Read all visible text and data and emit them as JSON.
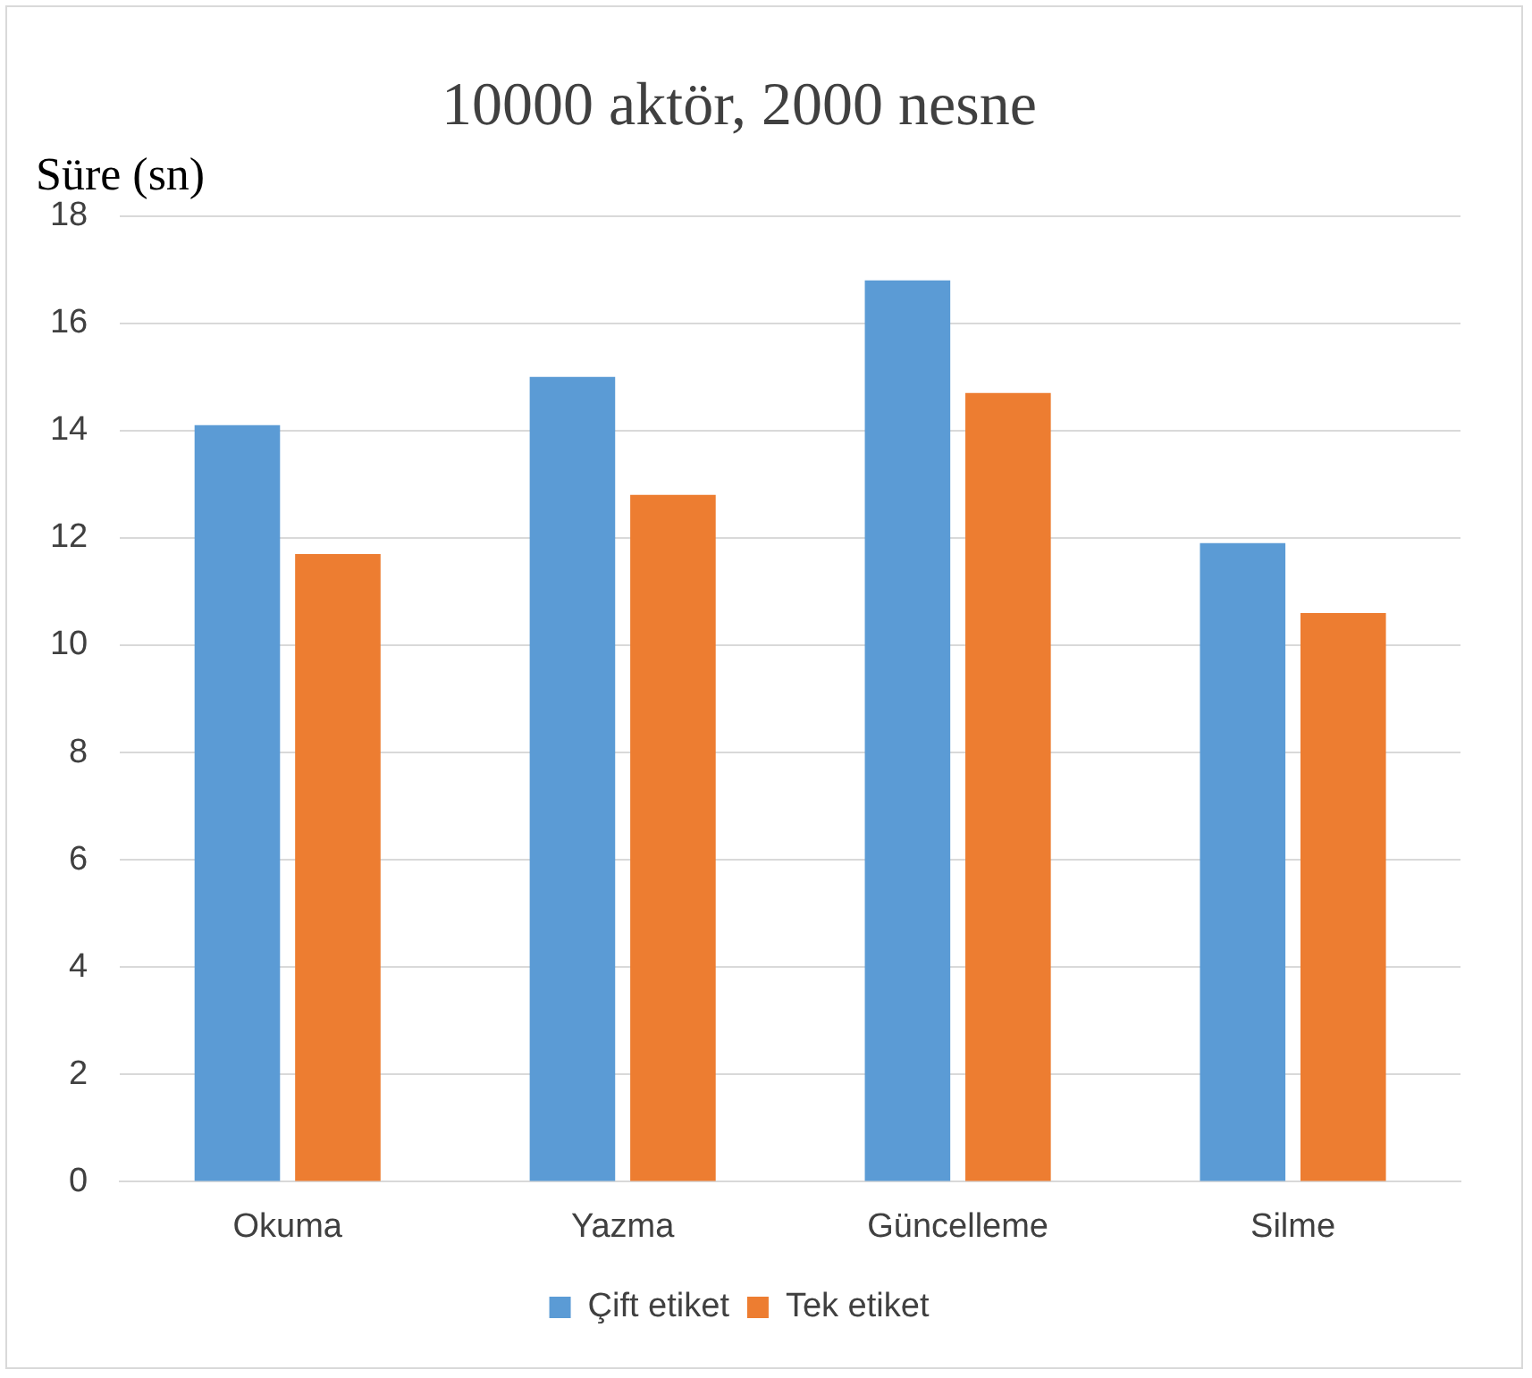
{
  "chart_data": {
    "type": "bar",
    "title": "10000 aktör, 2000 nesne",
    "ylabel": "Süre (sn)",
    "categories": [
      "Okuma",
      "Yazma",
      "Güncelleme",
      "Silme"
    ],
    "series": [
      {
        "name": "Çift etiket",
        "color": "#5b9bd5",
        "values": [
          14.1,
          15.0,
          16.8,
          11.9
        ]
      },
      {
        "name": "Tek etiket",
        "color": "#ed7d31",
        "values": [
          11.7,
          12.8,
          14.7,
          10.6
        ]
      }
    ],
    "ylim": [
      0,
      18
    ],
    "yticks": [
      0,
      2,
      4,
      6,
      8,
      10,
      12,
      14,
      16,
      18
    ],
    "grid": "y",
    "legend": "bottom"
  }
}
